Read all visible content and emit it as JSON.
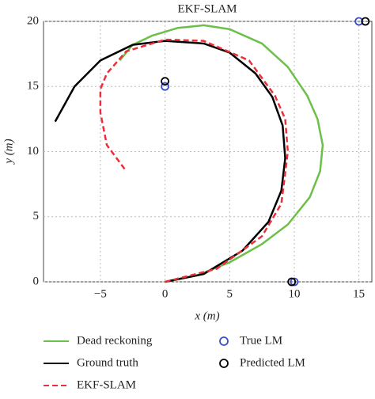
{
  "chart_data": {
    "type": "line",
    "title": "EKF-SLAM",
    "x_label": "x (m)",
    "y_label": "y (m)",
    "xlim": [
      -9.4,
      16
    ],
    "ylim": [
      0,
      20
    ],
    "xticks": [
      {
        "value": -5,
        "label": "−5"
      },
      0,
      5,
      10,
      15
    ],
    "yticks": [
      0,
      5,
      10,
      15,
      20
    ],
    "grid": true,
    "series": [
      {
        "name": "Dead reckoning",
        "color": "#6cc04a",
        "style": "solid",
        "x": [
          0,
          2.5,
          5,
          7.5,
          9.5,
          11.2,
          12,
          12.2,
          11.8,
          11,
          9.5,
          7.5,
          5,
          3,
          1,
          -1,
          -2.5,
          -3.5
        ],
        "values": [
          0,
          0.5,
          1.5,
          2.9,
          4.4,
          6.5,
          8.5,
          10.5,
          12.5,
          14.3,
          16.5,
          18.3,
          19.4,
          19.7,
          19.5,
          18.9,
          18.2,
          17
        ]
      },
      {
        "name": "Ground truth",
        "color": "#000000",
        "style": "solid",
        "x": [
          0,
          3,
          6,
          8,
          9,
          9.3,
          9.1,
          8.3,
          7,
          5,
          3,
          0,
          -2.5,
          -5,
          -7,
          -8.5
        ],
        "values": [
          0,
          0.6,
          2.4,
          4.6,
          7,
          9.5,
          12,
          14.2,
          16,
          17.6,
          18.3,
          18.5,
          18.2,
          17,
          15,
          12.3
        ]
      },
      {
        "name": "EKF-SLAM",
        "color": "#e8303a",
        "style": "dashed",
        "x": [
          0,
          4,
          7.5,
          9,
          9.5,
          9.3,
          8.5,
          6.5,
          3,
          0,
          -3,
          -4.5,
          -5,
          -5,
          -4.5,
          -3
        ],
        "values": [
          0,
          1,
          3.5,
          6,
          10,
          12.5,
          14.3,
          17,
          18.5,
          18.6,
          17.7,
          16,
          14.8,
          13,
          10.5,
          8.5
        ]
      },
      {
        "name": "True LM",
        "color": "#3a4fc4",
        "style": "marker",
        "x": [
          0,
          10,
          15
        ],
        "values": [
          15,
          0,
          20
        ]
      },
      {
        "name": "Predicted LM",
        "color": "#000000",
        "style": "marker",
        "x": [
          0,
          9.8,
          15.5
        ],
        "values": [
          15.4,
          0,
          20
        ]
      }
    ]
  }
}
